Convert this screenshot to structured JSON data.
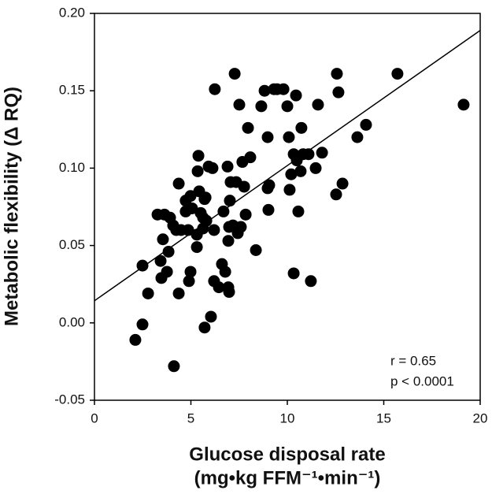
{
  "chart_data": {
    "type": "scatter",
    "xlabel": "Glucose disposal rate",
    "xlabel_units": "(mg•kg FFM⁻¹•min⁻¹)",
    "ylabel": "Metabolic flexibility (Δ RQ)",
    "annotations": [
      "r = 0.65",
      "p < 0.0001"
    ],
    "xlim": [
      0,
      20
    ],
    "xticks": [
      0,
      5,
      10,
      15,
      20
    ],
    "ylim": [
      -0.05,
      0.2
    ],
    "yticks": [
      -0.05,
      {
        "value": 0,
        "label": "0.00"
      },
      0.05,
      {
        "value": 0.1,
        "label": "0.10"
      },
      0.15,
      {
        "value": 0.2,
        "label": "0.20"
      }
    ],
    "color": "#000000",
    "trendline": {
      "x": [
        0,
        20
      ],
      "y": [
        0.0143,
        0.189
      ],
      "color": "#000000"
    },
    "x": [
      2.12,
      2.49,
      2.49,
      2.78,
      3.27,
      3.47,
      3.43,
      3.63,
      3.55,
      3.76,
      3.84,
      3.92,
      4.08,
      4.12,
      4.24,
      4.37,
      4.37,
      4.49,
      4.73,
      4.73,
      4.86,
      4.9,
      4.98,
      4.98,
      5.06,
      5.31,
      5.31,
      5.35,
      5.39,
      5.43,
      5.51,
      5.63,
      5.63,
      5.71,
      5.76,
      5.71,
      5.8,
      5.92,
      6.04,
      6.12,
      6.2,
      6.2,
      6.24,
      6.45,
      6.61,
      6.69,
      6.78,
      6.9,
      6.94,
      6.94,
      6.98,
      6.98,
      7.02,
      7.06,
      7.18,
      7.27,
      7.35,
      7.43,
      7.51,
      7.59,
      7.67,
      7.76,
      7.84,
      7.96,
      8.08,
      8.37,
      8.65,
      8.82,
      8.98,
      9.02,
      8.98,
      9.06,
      9.31,
      9.47,
      9.8,
      10.0,
      10.08,
      10.12,
      10.2,
      10.33,
      10.33,
      10.45,
      10.49,
      10.57,
      10.69,
      10.73,
      10.82,
      11.1,
      11.22,
      11.47,
      11.59,
      11.8,
      12.53,
      12.57,
      12.65,
      12.86,
      13.63,
      14.08,
      15.71,
      19.14
    ],
    "values": [
      -0.011,
      -0.001,
      0.037,
      0.019,
      0.07,
      0.029,
      0.04,
      0.07,
      0.054,
      0.033,
      0.046,
      0.068,
      0.063,
      -0.028,
      0.06,
      0.019,
      0.09,
      0.06,
      0.079,
      0.072,
      0.06,
      0.027,
      0.082,
      0.033,
      0.074,
      0.049,
      0.057,
      0.098,
      0.108,
      0.085,
      0.071,
      0.068,
      0.061,
      0.08,
      0.081,
      -0.003,
      0.066,
      0.101,
      0.004,
      0.1,
      0.06,
      0.027,
      0.151,
      0.023,
      0.038,
      0.072,
      0.033,
      0.101,
      0.053,
      0.023,
      0.02,
      0.062,
      0.079,
      0.091,
      0.063,
      0.161,
      0.091,
      0.058,
      0.141,
      0.062,
      0.104,
      0.088,
      0.07,
      0.126,
      0.107,
      0.047,
      0.14,
      0.15,
      0.087,
      0.073,
      0.12,
      0.089,
      0.151,
      0.151,
      0.151,
      0.14,
      0.12,
      0.086,
      0.096,
      0.032,
      0.109,
      0.147,
      0.105,
      0.072,
      0.098,
      0.126,
      0.109,
      0.109,
      0.027,
      0.1,
      0.141,
      0.11,
      0.083,
      0.161,
      0.149,
      0.09,
      0.12,
      0.128,
      0.161,
      0.141
    ]
  }
}
